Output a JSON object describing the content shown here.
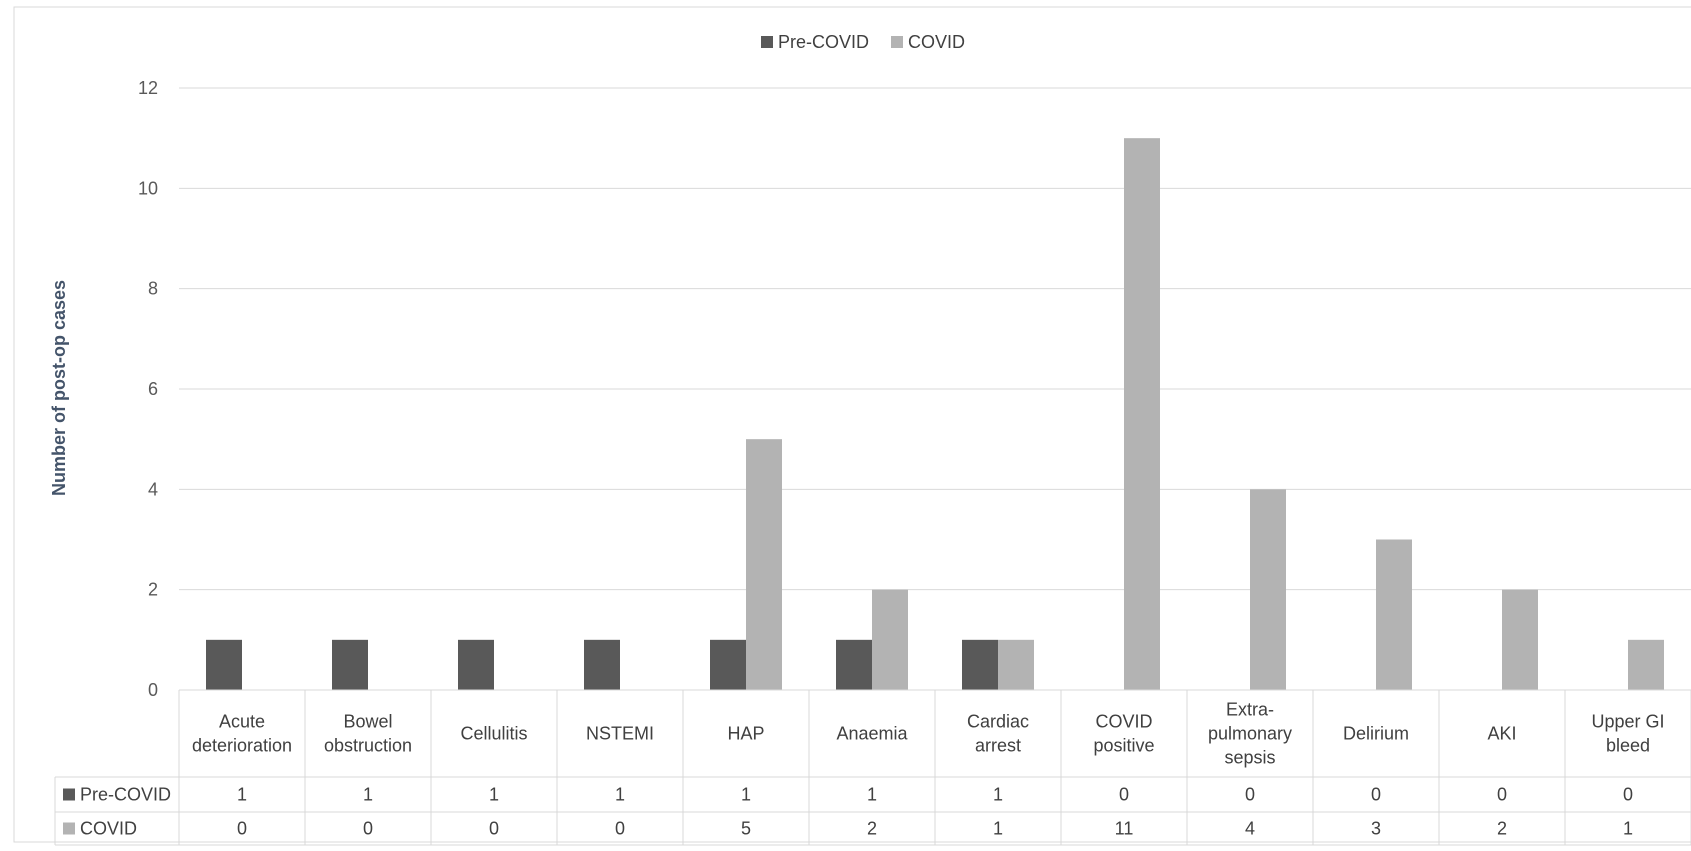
{
  "chart_data": {
    "type": "bar",
    "categories": [
      [
        "Acute",
        "deterioration"
      ],
      [
        "Bowel",
        "obstruction"
      ],
      [
        "Cellulitis"
      ],
      [
        "NSTEMI"
      ],
      [
        "HAP"
      ],
      [
        "Anaemia"
      ],
      [
        "Cardiac",
        "arrest"
      ],
      [
        "COVID",
        "positive"
      ],
      [
        "Extra-",
        "pulmonary",
        "sepsis"
      ],
      [
        "Delirium"
      ],
      [
        "AKI"
      ],
      [
        "Upper GI",
        "bleed"
      ]
    ],
    "series": [
      {
        "name": "Pre-COVID",
        "values": [
          1,
          1,
          1,
          1,
          1,
          1,
          1,
          0,
          0,
          0,
          0,
          0
        ],
        "color": "#595959"
      },
      {
        "name": "COVID",
        "values": [
          0,
          0,
          0,
          0,
          5,
          2,
          1,
          11,
          4,
          3,
          2,
          1
        ],
        "color": "#b3b3b3"
      }
    ],
    "title": "",
    "xlabel": "",
    "ylabel": "Number of post-op cases",
    "ylim": [
      0,
      12
    ],
    "yticks": [
      0,
      2,
      4,
      6,
      8,
      10,
      12
    ],
    "grid": true,
    "legend_position": "top-center",
    "data_table": true
  }
}
